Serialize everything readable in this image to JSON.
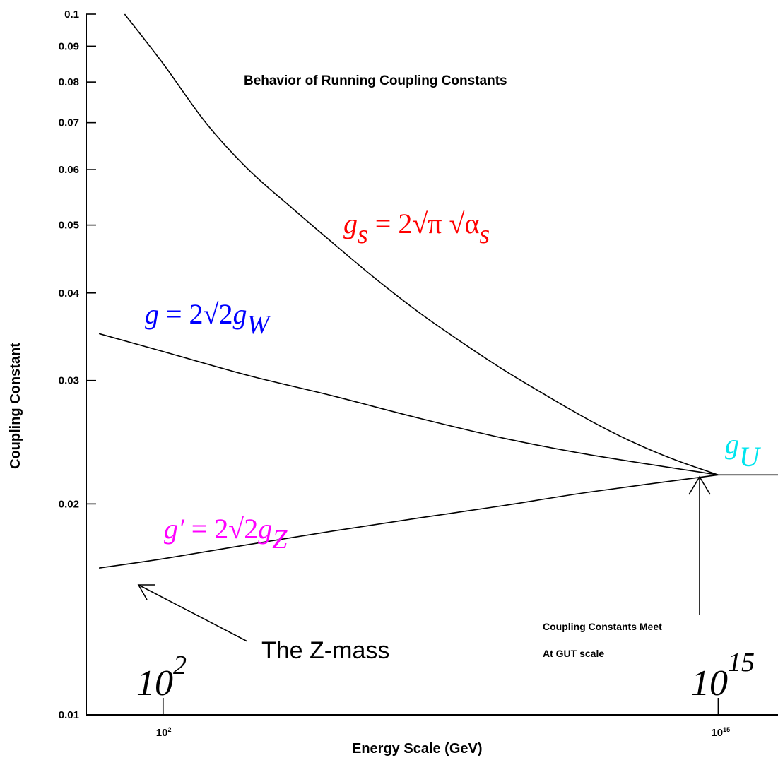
{
  "chart_data": {
    "type": "line",
    "title": "Behavior of Running Coupling Constants",
    "xlabel": "Energy Scale (GeV)",
    "ylabel": "Coupling Constant",
    "xscale": "log",
    "yscale": "log",
    "ylim": [
      0.01,
      0.1
    ],
    "xlim_log10": [
      0.2,
      16.4
    ],
    "grid": false,
    "y_ticks": [
      {
        "value": 0.1,
        "label": "0.1"
      },
      {
        "value": 0.09,
        "label": "0.09"
      },
      {
        "value": 0.08,
        "label": "0.08"
      },
      {
        "value": 0.07,
        "label": "0.07"
      },
      {
        "value": 0.06,
        "label": "0.06"
      },
      {
        "value": 0.05,
        "label": "0.05"
      },
      {
        "value": 0.04,
        "label": "0.04"
      },
      {
        "value": 0.03,
        "label": "0.03"
      },
      {
        "value": 0.02,
        "label": "0.02"
      },
      {
        "value": 0.01,
        "label": "0.01"
      }
    ],
    "x_ticks": [
      {
        "log10": 2,
        "base": "10",
        "exp": "2"
      },
      {
        "log10": 15,
        "base": "10",
        "exp": "15"
      }
    ],
    "series": [
      {
        "label": "g_s = 2√π √α_s",
        "color": "#ff0000",
        "log10_x": [
          1.1,
          2.0,
          3.0,
          4.0,
          5.0,
          6.0,
          7.0,
          8.0,
          9.0,
          10.0,
          11.0,
          12.0,
          13.0,
          14.0,
          15.0
        ],
        "y": [
          0.1,
          0.085,
          0.07,
          0.06,
          0.053,
          0.047,
          0.0418,
          0.0375,
          0.034,
          0.031,
          0.0285,
          0.0263,
          0.0245,
          0.0231,
          0.022
        ]
      },
      {
        "label": "g = 2√2 g_W",
        "color": "#0000ff",
        "log10_x": [
          0.5,
          2.0,
          4.0,
          6.0,
          8.0,
          10.0,
          12.0,
          15.0
        ],
        "y": [
          0.035,
          0.033,
          0.0305,
          0.0285,
          0.0265,
          0.0248,
          0.0235,
          0.022
        ]
      },
      {
        "label": "g′ = 2√2 g_Z",
        "color": "#ff00ff",
        "log10_x": [
          0.5,
          2.0,
          4.0,
          6.0,
          8.0,
          10.0,
          12.0,
          15.0
        ],
        "y": [
          0.0162,
          0.0167,
          0.0175,
          0.0183,
          0.0191,
          0.0199,
          0.0208,
          0.022
        ]
      },
      {
        "label": "g_U",
        "color": "#00e5ee",
        "log10_x": [
          15.0,
          16.4
        ],
        "y": [
          0.022,
          0.022
        ]
      }
    ],
    "annotations": {
      "gut_line1": "Coupling Constants Meet",
      "gut_line2": "At GUT scale",
      "zmass": "The Z-mass",
      "big_labels": [
        {
          "base": "10",
          "exp": "2"
        },
        {
          "base": "10",
          "exp": "15"
        }
      ]
    }
  }
}
